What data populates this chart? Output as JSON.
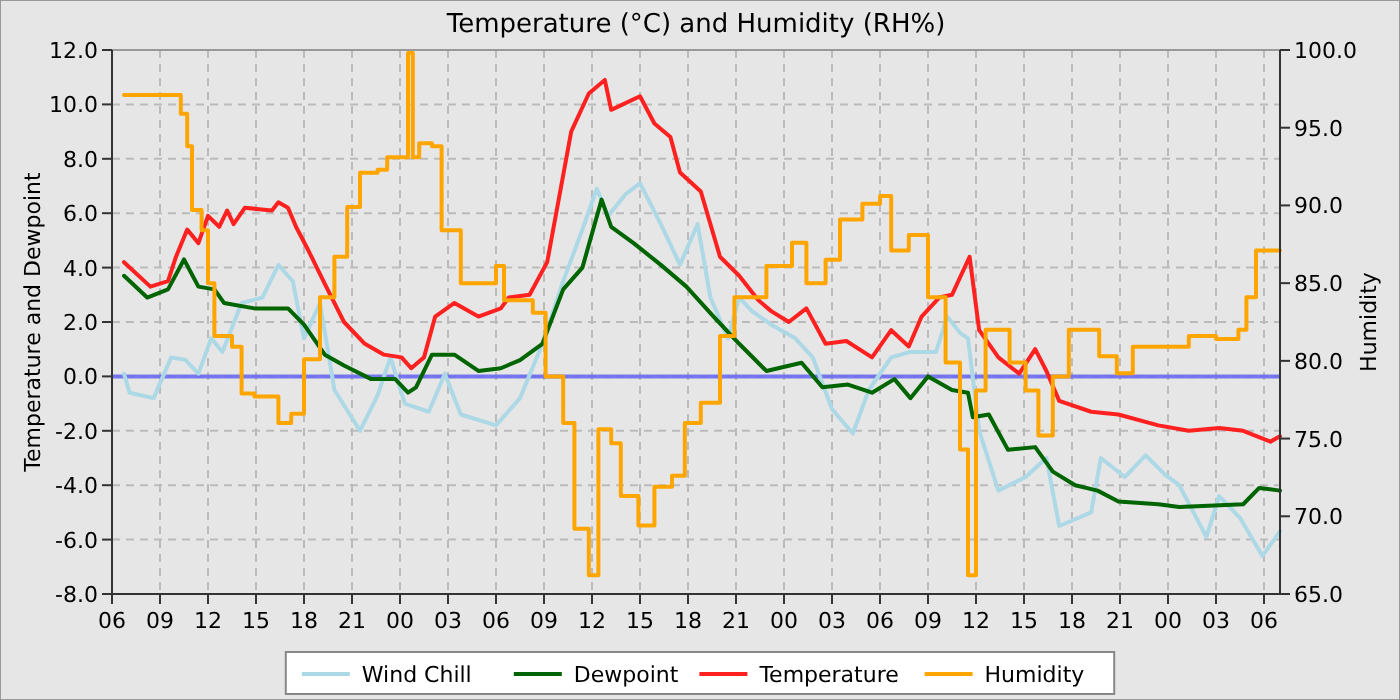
{
  "chart_data": {
    "type": "line",
    "title": "Temperature (°C) and Humidity (RH%)",
    "ylabel": "Temperature and Dewpoint",
    "y2label": "Humidity",
    "xlim": [
      6,
      79
    ],
    "ylim": [
      -8,
      12
    ],
    "y2lim": [
      65,
      100
    ],
    "xticks": [
      {
        "value": 6,
        "label": "06"
      },
      {
        "value": 9,
        "label": "09"
      },
      {
        "value": 12,
        "label": "12"
      },
      {
        "value": 15,
        "label": "15"
      },
      {
        "value": 18,
        "label": "18"
      },
      {
        "value": 21,
        "label": "21"
      },
      {
        "value": 24,
        "label": "00"
      },
      {
        "value": 27,
        "label": "03"
      },
      {
        "value": 30,
        "label": "06"
      },
      {
        "value": 33,
        "label": "09"
      },
      {
        "value": 36,
        "label": "12"
      },
      {
        "value": 39,
        "label": "15"
      },
      {
        "value": 42,
        "label": "18"
      },
      {
        "value": 45,
        "label": "21"
      },
      {
        "value": 48,
        "label": "00"
      },
      {
        "value": 51,
        "label": "03"
      },
      {
        "value": 54,
        "label": "06"
      },
      {
        "value": 57,
        "label": "09"
      },
      {
        "value": 60,
        "label": "12"
      },
      {
        "value": 63,
        "label": "15"
      },
      {
        "value": 66,
        "label": "18"
      },
      {
        "value": 69,
        "label": "21"
      },
      {
        "value": 72,
        "label": "00"
      },
      {
        "value": 75,
        "label": "03"
      },
      {
        "value": 78,
        "label": "06"
      }
    ],
    "yticks": [
      {
        "value": -8,
        "label": "-8.0"
      },
      {
        "value": -6,
        "label": "-6.0"
      },
      {
        "value": -4,
        "label": "-4.0"
      },
      {
        "value": -2,
        "label": "-2.0"
      },
      {
        "value": 0,
        "label": "0.0"
      },
      {
        "value": 2,
        "label": "2.0"
      },
      {
        "value": 4,
        "label": "4.0"
      },
      {
        "value": 6,
        "label": "6.0"
      },
      {
        "value": 8,
        "label": "8.0"
      },
      {
        "value": 10,
        "label": "10.0"
      },
      {
        "value": 12,
        "label": "12.0"
      }
    ],
    "y2ticks": [
      {
        "value": 65,
        "label": "65.0"
      },
      {
        "value": 70,
        "label": "70.0"
      },
      {
        "value": 75,
        "label": "75.0"
      },
      {
        "value": 80,
        "label": "80.0"
      },
      {
        "value": 85,
        "label": "85.0"
      },
      {
        "value": 90,
        "label": "90.0"
      },
      {
        "value": 95,
        "label": "95.0"
      },
      {
        "value": 100,
        "label": "100.0"
      }
    ],
    "grid": true,
    "legend": "bottom",
    "line_style": "solid",
    "marker": "none",
    "ref_lines": [
      {
        "axis": "y",
        "value": 0,
        "color": "#6b6bf0"
      }
    ],
    "series": [
      {
        "name": "Wind Chill",
        "color": "#add8e6",
        "x": [
          6.75,
          7.1,
          8.6,
          9.7,
          10.6,
          11.4,
          12.2,
          12.9,
          14.1,
          15.4,
          16.4,
          17.3,
          18,
          19,
          19.9,
          21.5,
          22.6,
          23.4,
          24.3,
          25.8,
          26.8,
          27.8,
          30,
          31.5,
          32.9,
          34.2,
          35.4,
          36.3,
          37,
          38.1,
          39,
          40.3,
          41.5,
          42.6,
          43.4,
          44.5,
          45.2,
          46,
          47.2,
          48.7,
          49.8,
          51,
          52.3,
          53.3,
          54.7,
          55.9,
          57.5,
          58.2,
          59,
          59.5,
          60.2,
          61.4,
          63.1,
          64.4,
          65.2,
          67.2,
          67.8,
          69.3,
          70.6,
          71.8,
          72.7,
          74.4,
          75.2,
          76.5,
          77.9,
          79
        ],
        "values": [
          0.1,
          -0.6,
          -0.8,
          0.7,
          0.6,
          0.1,
          1.4,
          0.9,
          2.7,
          2.9,
          4.1,
          3.5,
          1.4,
          2.7,
          -0.5,
          -2.0,
          -0.7,
          0.7,
          -1.0,
          -1.3,
          0.1,
          -1.4,
          -1.8,
          -0.8,
          1.2,
          3.5,
          5.4,
          6.9,
          5.9,
          6.7,
          7.1,
          5.6,
          4.1,
          5.6,
          2.9,
          1.4,
          2.9,
          2.4,
          1.9,
          1.4,
          0.7,
          -1.2,
          -2.1,
          -0.5,
          0.7,
          0.9,
          0.9,
          2.2,
          1.6,
          1.4,
          -2.0,
          -4.2,
          -3.7,
          -3.0,
          -5.5,
          -5.0,
          -3.0,
          -3.7,
          -2.9,
          -3.6,
          -4.0,
          -5.9,
          -4.4,
          -5.2,
          -6.6,
          -5.7
        ]
      },
      {
        "name": "Dewpoint",
        "color": "#006400",
        "x": [
          6.75,
          8.2,
          9.5,
          10.5,
          11.4,
          12.4,
          13,
          14.9,
          17,
          18,
          19.3,
          20.5,
          22.2,
          23.7,
          24.5,
          25,
          26,
          27.4,
          28.9,
          30.3,
          31.5,
          32.9,
          34.2,
          35.4,
          36.6,
          37.2,
          38.6,
          40.3,
          41.9,
          43.6,
          45.2,
          46.9,
          49.1,
          50.4,
          52,
          53.5,
          54.9,
          55.9,
          57,
          58.5,
          59.5,
          59.8,
          60.8,
          62,
          63.7,
          64.8,
          66.2,
          67.6,
          68.9,
          71.4,
          72.7,
          76.7,
          77.7,
          79
        ],
        "values": [
          3.7,
          2.9,
          3.2,
          4.3,
          3.3,
          3.2,
          2.7,
          2.5,
          2.5,
          1.9,
          0.8,
          0.4,
          -0.1,
          -0.1,
          -0.6,
          -0.4,
          0.8,
          0.8,
          0.2,
          0.3,
          0.6,
          1.2,
          3.2,
          4.0,
          6.5,
          5.5,
          4.9,
          4.1,
          3.3,
          2.2,
          1.2,
          0.2,
          0.5,
          -0.4,
          -0.3,
          -0.6,
          -0.1,
          -0.8,
          0.0,
          -0.5,
          -0.6,
          -1.5,
          -1.4,
          -2.7,
          -2.6,
          -3.5,
          -4.0,
          -4.2,
          -4.6,
          -4.7,
          -4.8,
          -4.7,
          -4.1,
          -4.2
        ]
      },
      {
        "name": "Temperature",
        "color": "#ff2020",
        "x": [
          6.75,
          8.4,
          9.5,
          10,
          10.7,
          11.4,
          12,
          12.7,
          13.2,
          13.6,
          14.3,
          16,
          16.4,
          17,
          17.5,
          18.3,
          19.3,
          20.5,
          21.8,
          23,
          24.1,
          24.7,
          25.5,
          26.2,
          27.4,
          28.9,
          30.3,
          30.8,
          32.1,
          33.2,
          34.7,
          35.8,
          36.8,
          37.2,
          39,
          39.9,
          40.9,
          41.5,
          42.8,
          44,
          45.2,
          46.4,
          47.2,
          48.3,
          49.4,
          50.6,
          51.9,
          53.5,
          54.7,
          55.8,
          56.6,
          57.7,
          58.5,
          59.6,
          60.2,
          61.4,
          62.7,
          63.7,
          64.4,
          65.2,
          67.2,
          68.9,
          71.4,
          73.3,
          75.2,
          76.7,
          78.4,
          79
        ],
        "values": [
          4.2,
          3.3,
          3.5,
          4.4,
          5.4,
          4.9,
          5.9,
          5.5,
          6.1,
          5.6,
          6.2,
          6.1,
          6.4,
          6.2,
          5.5,
          4.6,
          3.4,
          2.0,
          1.2,
          0.8,
          0.7,
          0.3,
          0.7,
          2.2,
          2.7,
          2.2,
          2.5,
          2.9,
          3.0,
          4.2,
          9.0,
          10.4,
          10.9,
          9.8,
          10.3,
          9.3,
          8.8,
          7.5,
          6.8,
          4.4,
          3.7,
          2.8,
          2.4,
          2.0,
          2.5,
          1.2,
          1.3,
          0.7,
          1.7,
          1.1,
          2.2,
          2.9,
          3.0,
          4.4,
          1.7,
          0.7,
          0.1,
          1.0,
          0.2,
          -0.9,
          -1.3,
          -1.4,
          -1.8,
          -2.0,
          -1.9,
          -2.0,
          -2.4,
          -2.2
        ]
      },
      {
        "name": "Humidity",
        "type": "step",
        "axis": "y2",
        "color": "#ffa500",
        "x": [
          6.75,
          9.9,
          10.3,
          10.7,
          11,
          11.6,
          12,
          12.4,
          13.5,
          14.1,
          14.9,
          16.4,
          17.2,
          18,
          19,
          19.9,
          20.7,
          21.5,
          22.6,
          23.2,
          24.1,
          24.5,
          24.8,
          25.2,
          26,
          26.6,
          27.8,
          30,
          30.5,
          32.3,
          33.1,
          34.2,
          34.9,
          35.8,
          36.4,
          37.2,
          37.8,
          38.9,
          39.9,
          41,
          41.8,
          42.8,
          44,
          44.9,
          46.9,
          48.5,
          49.4,
          50.6,
          51.5,
          52.9,
          54,
          54.7,
          55.8,
          57,
          58.1,
          59,
          59.5,
          60,
          60.6,
          62.1,
          63.1,
          63.9,
          64.8,
          65.8,
          67.7,
          68.8,
          69.8,
          73.3,
          75,
          76.4,
          76.9,
          77.5,
          79
        ],
        "values": [
          97.1,
          97.1,
          95.9,
          93.8,
          89.7,
          88.4,
          85.0,
          81.6,
          80.9,
          77.9,
          77.7,
          76.0,
          76.6,
          80.1,
          84.1,
          86.7,
          89.9,
          92.1,
          92.3,
          93.1,
          93.1,
          99.8,
          93.1,
          94.0,
          93.8,
          88.4,
          85.0,
          86.1,
          83.9,
          83.1,
          79.0,
          76.0,
          69.2,
          66.2,
          75.6,
          74.7,
          71.3,
          69.4,
          71.9,
          72.6,
          76.0,
          77.3,
          81.6,
          84.1,
          86.1,
          87.6,
          85.0,
          86.5,
          89.1,
          90.1,
          90.6,
          87.1,
          88.1,
          84.1,
          79.9,
          74.3,
          66.2,
          78.1,
          82.0,
          79.9,
          78.1,
          75.2,
          79.0,
          82.0,
          80.3,
          79.2,
          80.9,
          81.6,
          81.4,
          82.0,
          84.1,
          87.1,
          87.1
        ]
      }
    ]
  }
}
